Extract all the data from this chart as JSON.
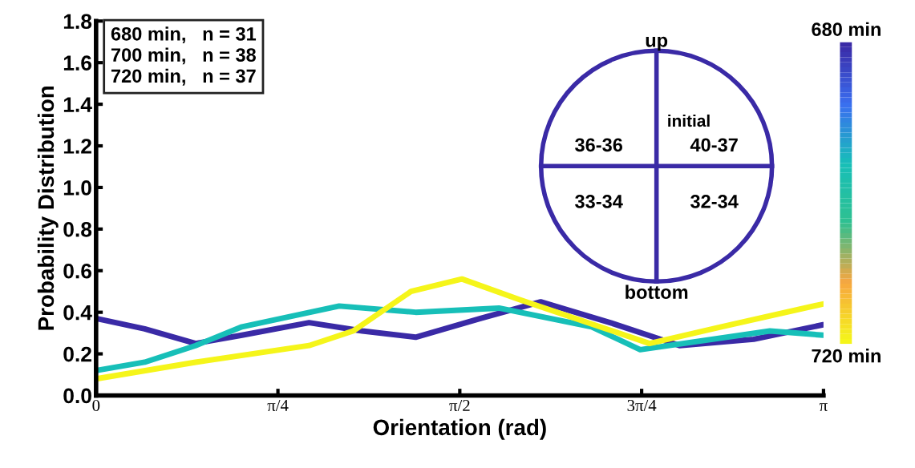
{
  "chart_data": {
    "type": "line",
    "xlabel": "Orientation (rad)",
    "ylabel": "Probability Distribution",
    "xlim": [
      0,
      3.1416
    ],
    "ylim": [
      0,
      1.8
    ],
    "xticks": [
      {
        "value": 0,
        "label": "0"
      },
      {
        "value": 0.7854,
        "label": "π/4"
      },
      {
        "value": 1.5708,
        "label": "π/2"
      },
      {
        "value": 2.3562,
        "label": "3π/4"
      },
      {
        "value": 3.1416,
        "label": "π"
      }
    ],
    "yticks": [
      {
        "value": 0,
        "label": "0.0"
      },
      {
        "value": 0.2,
        "label": "0.2"
      },
      {
        "value": 0.4,
        "label": "0.4"
      },
      {
        "value": 0.6,
        "label": "0.6"
      },
      {
        "value": 0.8,
        "label": "0.8"
      },
      {
        "value": 1.0,
        "label": "1.0"
      },
      {
        "value": 1.2,
        "label": "1.2"
      },
      {
        "value": 1.4,
        "label": "1.4"
      },
      {
        "value": 1.6,
        "label": "1.6"
      },
      {
        "value": 1.8,
        "label": "1.8"
      }
    ],
    "grid": false,
    "legend": false,
    "series": [
      {
        "color": "#3a2aa6",
        "x": [
          0,
          0.21,
          0.43,
          0.63,
          0.92,
          1.15,
          1.38,
          1.66,
          1.92,
          2.22,
          2.52,
          2.84,
          3.14
        ],
        "values": [
          0.37,
          0.32,
          0.25,
          0.29,
          0.35,
          0.31,
          0.28,
          0.37,
          0.45,
          0.35,
          0.24,
          0.27,
          0.34
        ]
      },
      {
        "color": "#17bfb8",
        "x": [
          0,
          0.21,
          0.43,
          0.63,
          1.05,
          1.38,
          1.74,
          2.14,
          2.35,
          2.91,
          3.14
        ],
        "values": [
          0.12,
          0.16,
          0.24,
          0.33,
          0.43,
          0.4,
          0.42,
          0.33,
          0.22,
          0.31,
          0.29
        ]
      },
      {
        "color": "#f5f51a",
        "x": [
          0,
          0.43,
          0.92,
          1.11,
          1.36,
          1.58,
          1.83,
          2.39,
          2.7,
          3.14
        ],
        "values": [
          0.08,
          0.16,
          0.24,
          0.31,
          0.5,
          0.56,
          0.46,
          0.25,
          0.33,
          0.44
        ]
      }
    ],
    "annotations": [
      "680 min,   n = 31",
      "700 min,   n = 38",
      "720 min,   n = 37",
      "up",
      "initial",
      "36-36",
      "40-37",
      "33-34",
      "32-34",
      "bottom",
      "680 min",
      "720 min"
    ]
  }
}
